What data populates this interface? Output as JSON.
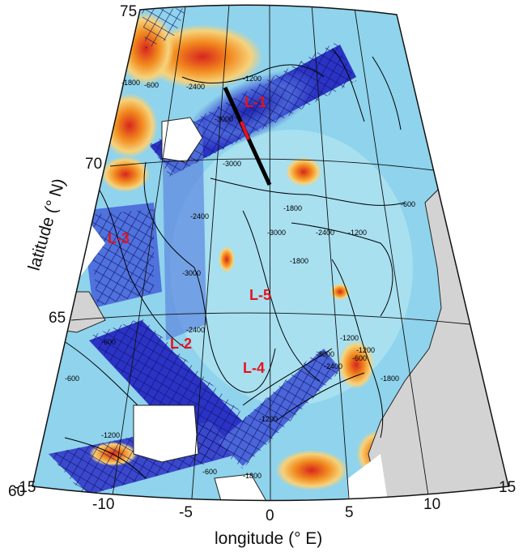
{
  "axes": {
    "xlabel": "longitude (° E)",
    "ylabel": "latitude (° N)",
    "lon_ticks": [
      "-15",
      "-10",
      "-5",
      "0",
      "5",
      "10",
      "15"
    ],
    "lat_ticks": [
      "60",
      "65",
      "70",
      "75"
    ]
  },
  "regions": [
    "L-1",
    "L-2",
    "L-3",
    "L-4",
    "L-5"
  ],
  "contour_labels": [
    "-3000",
    "-2400",
    "-1800",
    "-1200",
    "-600",
    "-3000",
    "-2400",
    "-1800",
    "-1200",
    "-600",
    "-3000",
    "-1800",
    "-2400",
    "-1200",
    "-600",
    "-3000",
    "-2400",
    "-1800",
    "-1200",
    "-600",
    "-3000",
    "-2400",
    "-1200",
    "-1800",
    "-600",
    "-600",
    "-1200"
  ],
  "colors": {
    "land": "#d3d3d3",
    "ocean_base": "#8fd3ec",
    "low": "#2a2fc4",
    "high": "#f28a1e",
    "peak": "#d7261e",
    "section_line": "#000000",
    "section_marker": "#e8121b"
  }
}
